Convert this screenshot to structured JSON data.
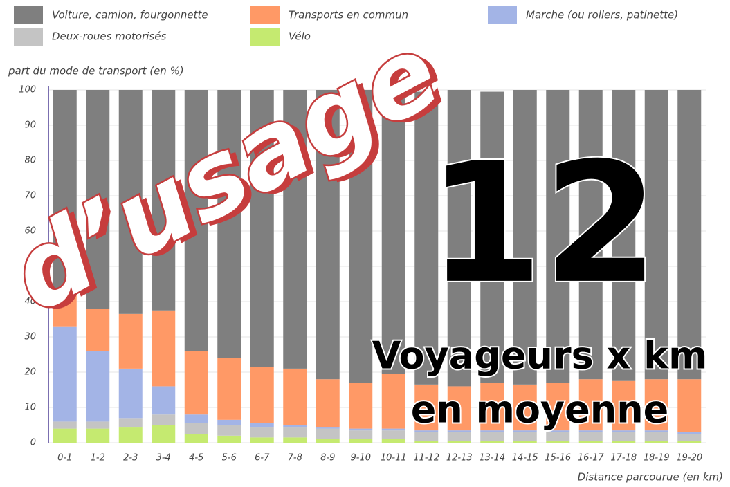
{
  "chart_data": {
    "type": "stacked_bar",
    "y_axis_label": "part du mode de transport (en %)",
    "x_axis_label": "Distance parcourue (en km)",
    "categories": [
      "0-1",
      "1-2",
      "2-3",
      "3-4",
      "4-5",
      "5-6",
      "6-7",
      "7-8",
      "8-9",
      "9-10",
      "10-11",
      "11-12",
      "12-13",
      "13-14",
      "14-15",
      "15-16",
      "16-17",
      "17-18",
      "18-19",
      "19-20"
    ],
    "series": [
      {
        "name": "Voiture, camion, fourgonnette",
        "color": "#7f7f7f",
        "values": [
          58,
          62,
          63.5,
          62.5,
          74,
          76,
          78.5,
          79,
          82,
          83,
          80.5,
          83,
          84,
          82.5,
          83.5,
          83,
          82,
          82.5,
          82,
          82
        ]
      },
      {
        "name": "Transports en commun",
        "color": "#ff9966",
        "values": [
          9,
          12,
          15.5,
          21.5,
          18,
          17.5,
          16,
          16,
          13.5,
          13,
          15.5,
          13,
          12.5,
          13.5,
          13,
          13.5,
          14.5,
          14,
          14.5,
          15
        ]
      },
      {
        "name": "Marche (ou rollers, patinette)",
        "color": "#a3b4e6",
        "values": [
          27,
          20,
          14,
          8,
          2.5,
          1.5,
          1,
          0.5,
          0.5,
          0.5,
          0.5,
          0.5,
          0.5,
          0.5,
          0.5,
          0.5,
          0.5,
          0.5,
          0.5,
          0.5
        ]
      },
      {
        "name": "Deux-roues motorisés",
        "color": "#c4c4c4",
        "values": [
          2,
          2,
          2.5,
          3,
          3,
          3,
          3,
          3,
          3,
          2.5,
          2.5,
          2.5,
          2.5,
          2.5,
          2.5,
          2.5,
          2.5,
          2.5,
          2.5,
          2
        ]
      },
      {
        "name": "Vélo",
        "color": "#c5ea70",
        "values": [
          4,
          4,
          4.5,
          5,
          2.5,
          2,
          1.5,
          1.5,
          1,
          1,
          1,
          0.5,
          0.5,
          0.5,
          0.5,
          0.5,
          0.5,
          0.5,
          0.5,
          0.5
        ]
      }
    ],
    "ylim": [
      0,
      100
    ],
    "yticks": [
      0,
      10,
      20,
      30,
      40,
      50,
      60,
      70,
      80,
      90,
      100
    ],
    "grid": true,
    "annotations": [
      "d’usage",
      "12",
      "Voyageurs x km",
      "en moyenne"
    ]
  }
}
